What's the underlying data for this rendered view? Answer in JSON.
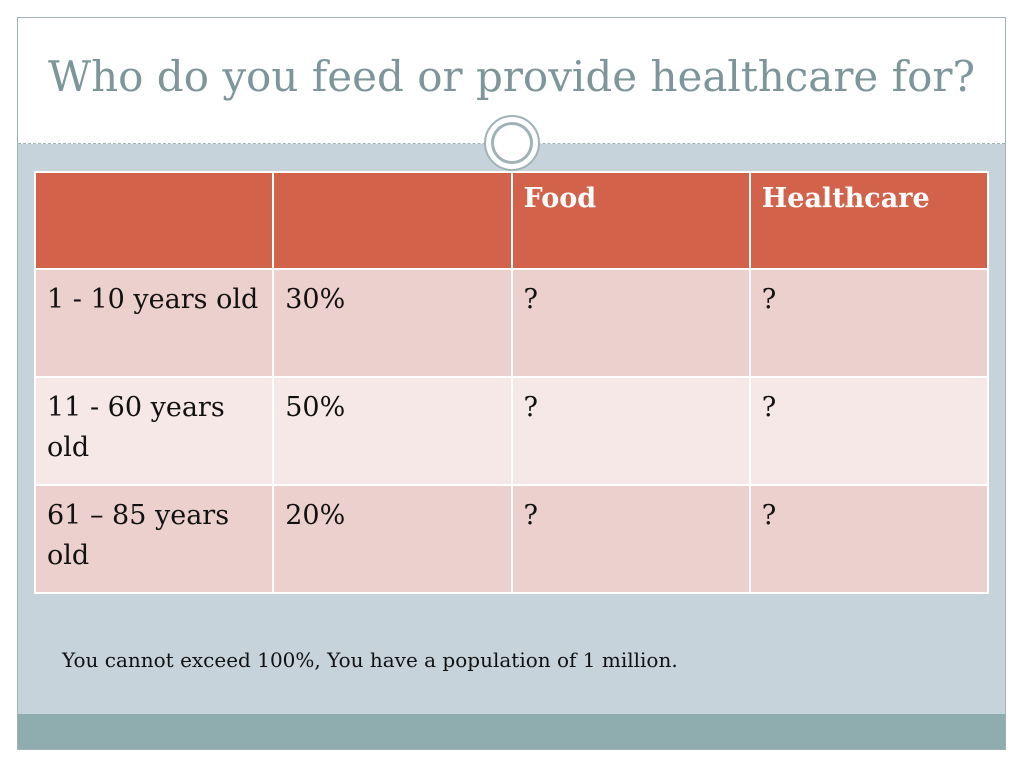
{
  "title": "Who do you feed or provide healthcare for?",
  "table": {
    "headers": [
      "",
      "",
      "Food",
      "Healthcare"
    ],
    "rows": [
      [
        "1 - 10 years old",
        "30%",
        "?",
        "?"
      ],
      [
        "11 - 60 years old",
        "50%",
        "?",
        "?"
      ],
      [
        "61 – 85 years old",
        "20%",
        "?",
        "?"
      ]
    ]
  },
  "note": "You cannot exceed 100%, You have a population of 1 million.",
  "colors": {
    "header": "#d2634a",
    "row_odd": "#ecd0cd",
    "row_even": "#f6e8e7",
    "title": "#7d969a",
    "background": "#c7d3da",
    "footer": "#8fadae"
  }
}
